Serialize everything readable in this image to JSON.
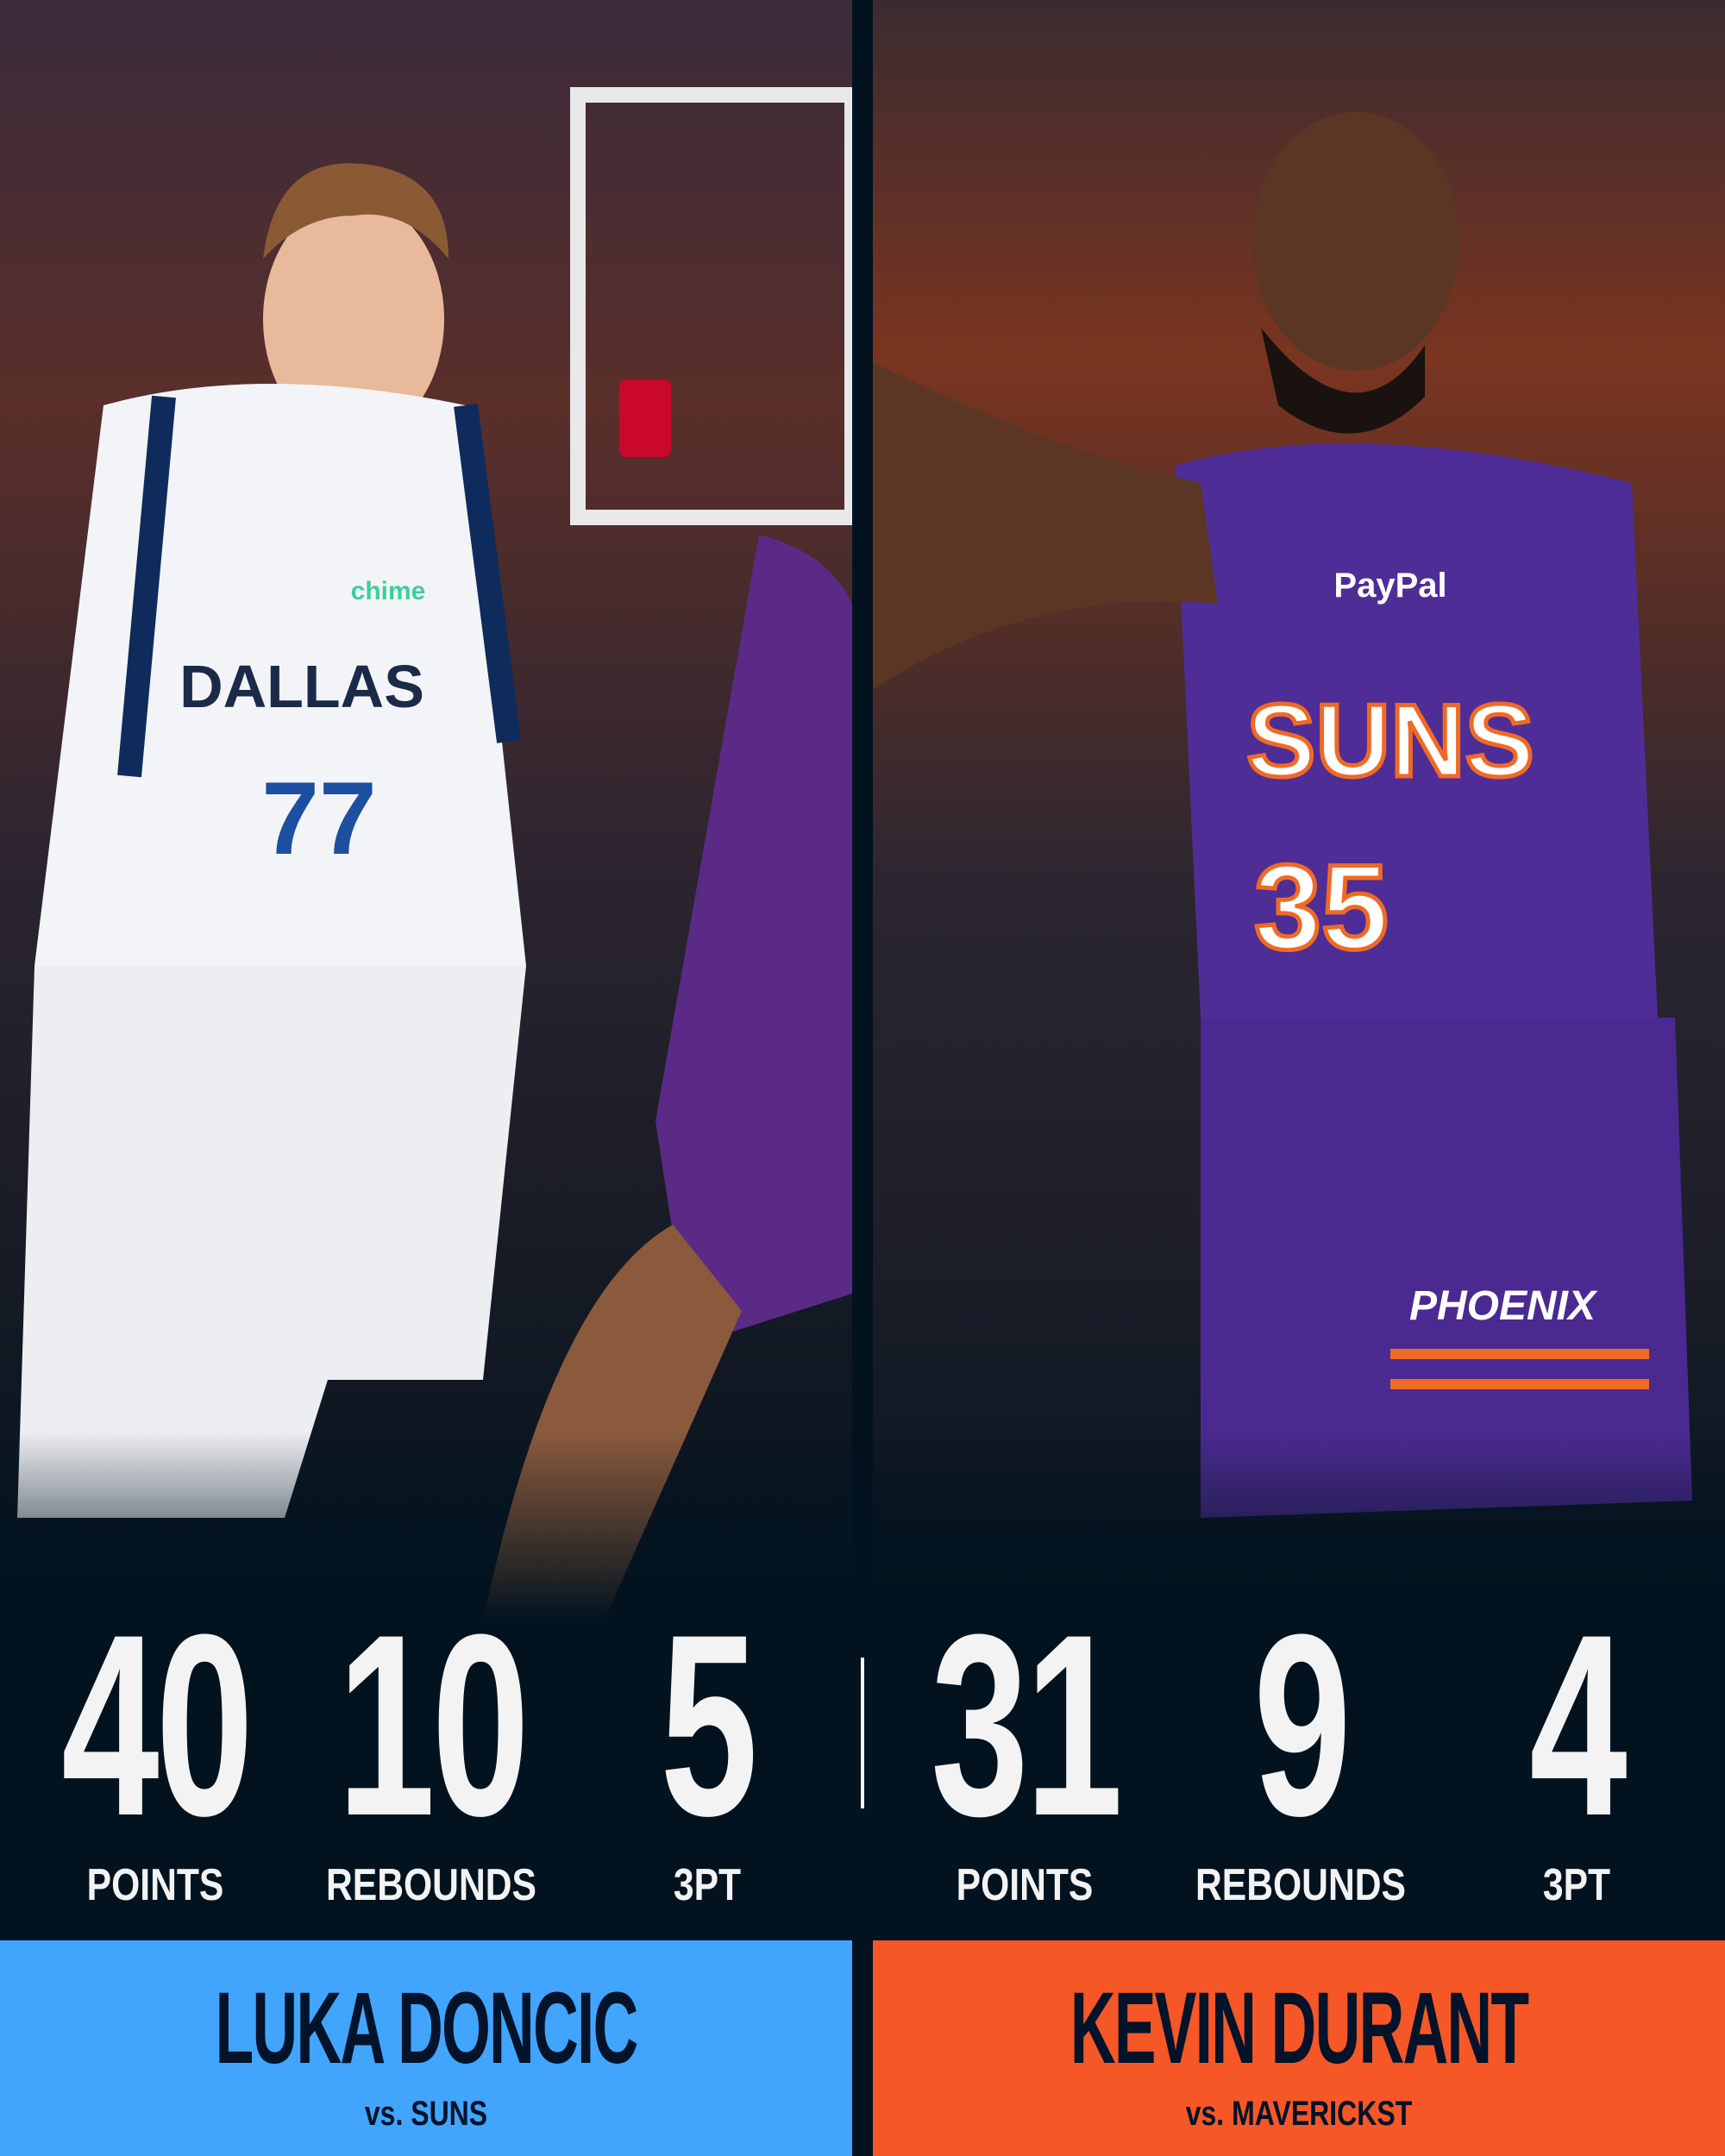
{
  "colors": {
    "left_accent": "#41a5fe",
    "right_accent": "#f55726",
    "background": "#02131f",
    "name_text": "#02132a",
    "stat_text": "#f3f3f3"
  },
  "left": {
    "photo": {
      "jersey_text": "DALLAS",
      "jersey_number": "77",
      "sponsor": "chime"
    },
    "stats": [
      {
        "value": "40",
        "label": "POINTS"
      },
      {
        "value": "10",
        "label": "REBOUNDS"
      },
      {
        "value": "5",
        "label": "3PT"
      }
    ],
    "player_name": "LUKA DONCIC",
    "opponent": "vs. SUNS"
  },
  "right": {
    "photo": {
      "jersey_text": "SUNS",
      "jersey_number": "35",
      "sponsor": "PayPal",
      "shorts_text": "PHOENIX"
    },
    "stats": [
      {
        "value": "31",
        "label": "POINTS"
      },
      {
        "value": "9",
        "label": "REBOUNDS"
      },
      {
        "value": "4",
        "label": "3PT"
      }
    ],
    "player_name": "KEVIN DURANT",
    "opponent": "vs. MAVERICKST"
  }
}
